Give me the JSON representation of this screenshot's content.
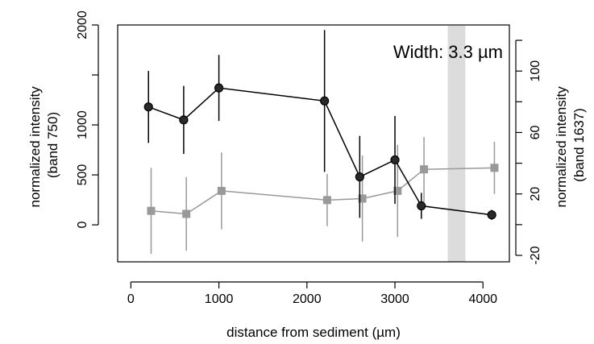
{
  "chart_data": {
    "type": "scatter",
    "xlabel": "distance from sediment (µm)",
    "ylabel_left": [
      "normalized intensity",
      "(band 750)"
    ],
    "ylabel_right": [
      "normalized intensity",
      "(band 1637)"
    ],
    "annotation": "Width: 3.3 µm",
    "xlim": [
      -150,
      4300
    ],
    "ylim_left": [
      -370,
      2000
    ],
    "ylim_right": [
      -24.2,
      130
    ],
    "x_ticks": [
      0,
      1000,
      2000,
      3000,
      4000
    ],
    "y_left_ticks": [
      0,
      500,
      1000,
      1500,
      2000
    ],
    "y_left_labeled_ticks": [
      0,
      500,
      1000,
      2000
    ],
    "y_right_ticks": [
      -20,
      20,
      60,
      100
    ],
    "y_right_minor_ticks": [
      0,
      40,
      80,
      120
    ],
    "shaded_band": {
      "x_start": 3600,
      "x_end": 3800,
      "color": "#dcdcdc"
    },
    "grid": false,
    "series": [
      {
        "axis": "left",
        "marker": "circle",
        "color": "#000000",
        "marker_fill": "#2a2a2a",
        "x": [
          200,
          600,
          1000,
          2200,
          2600,
          3000,
          3300,
          4100
        ],
        "y": [
          1180,
          1050,
          1370,
          1240,
          480,
          650,
          190,
          100
        ],
        "err": [
          360,
          340,
          330,
          710,
          410,
          440,
          130,
          50
        ]
      },
      {
        "axis": "right",
        "marker": "square",
        "color": "#999999",
        "marker_fill": "#999999",
        "x": [
          230,
          630,
          1030,
          2230,
          2630,
          3030,
          3330,
          4130
        ],
        "y": [
          9,
          7,
          22,
          16,
          17,
          22,
          36,
          37
        ],
        "err": [
          28,
          24,
          25,
          17,
          28,
          30,
          21,
          17
        ]
      }
    ]
  }
}
